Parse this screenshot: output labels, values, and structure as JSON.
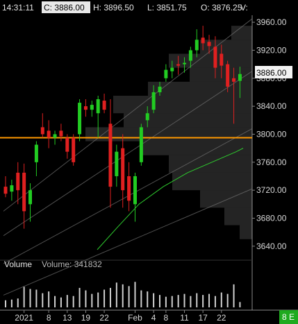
{
  "header": {
    "time": "14:31:11",
    "close_label": "C: 3886.00",
    "high_label": "H: 3896.50",
    "low_label": "L: 3851.75",
    "open_label": "O: 3876.25",
    "volume_label": "V:"
  },
  "price_tag": "3886.00",
  "volume_panel": {
    "title": "Volume",
    "value_label": "Volume: 341832"
  },
  "badge": "8 E",
  "colors": {
    "up": "#22cc22",
    "down": "#e02020",
    "orange_line": "#ff9900",
    "ma_green": "#2ecc2e",
    "volume": "#d0d0d0",
    "badge_bg": "#1faa1f"
  },
  "chart_data": {
    "type": "candlestick",
    "y_range": [
      3620,
      3970
    ],
    "y_ticks": [
      3960,
      3920,
      3880,
      3840,
      3800,
      3760,
      3720,
      3680,
      3640
    ],
    "y_tick_labels": [
      "3960.00",
      "3920.00",
      "3880.00",
      "3840.00",
      "3800.00",
      "3760.00",
      "3720.00",
      "3680.00",
      "3640.00"
    ],
    "x_labels": [
      {
        "index": 3,
        "label": "2021"
      },
      {
        "index": 7,
        "label": "8"
      },
      {
        "index": 10,
        "label": "13"
      },
      {
        "index": 13,
        "label": "19"
      },
      {
        "index": 16,
        "label": "22"
      },
      {
        "index": 21,
        "label": "Feb"
      },
      {
        "index": 24,
        "label": "4"
      },
      {
        "index": 26,
        "label": "8"
      },
      {
        "index": 29,
        "label": "11"
      },
      {
        "index": 32,
        "label": "17"
      },
      {
        "index": 35,
        "label": "22"
      }
    ],
    "horizontal_line": 3795,
    "candles": [
      {
        "o": 3725,
        "h": 3740,
        "l": 3710,
        "c": 3715
      },
      {
        "o": 3718,
        "h": 3735,
        "l": 3705,
        "c": 3727
      },
      {
        "o": 3745,
        "h": 3760,
        "l": 3700,
        "c": 3720
      },
      {
        "o": 3745,
        "h": 3758,
        "l": 3665,
        "c": 3690
      },
      {
        "o": 3700,
        "h": 3730,
        "l": 3675,
        "c": 3720
      },
      {
        "o": 3760,
        "h": 3790,
        "l": 3740,
        "c": 3785
      },
      {
        "o": 3810,
        "h": 3830,
        "l": 3795,
        "c": 3800
      },
      {
        "o": 3805,
        "h": 3820,
        "l": 3780,
        "c": 3795
      },
      {
        "o": 3795,
        "h": 3805,
        "l": 3785,
        "c": 3800
      },
      {
        "o": 3805,
        "h": 3815,
        "l": 3790,
        "c": 3797
      },
      {
        "o": 3795,
        "h": 3800,
        "l": 3765,
        "c": 3775
      },
      {
        "o": 3795,
        "h": 3800,
        "l": 3755,
        "c": 3760
      },
      {
        "o": 3800,
        "h": 3850,
        "l": 3790,
        "c": 3845
      },
      {
        "o": 3840,
        "h": 3850,
        "l": 3825,
        "c": 3835
      },
      {
        "o": 3835,
        "h": 3848,
        "l": 3825,
        "c": 3842
      },
      {
        "o": 3830,
        "h": 3855,
        "l": 3795,
        "c": 3850
      },
      {
        "o": 3848,
        "h": 3858,
        "l": 3830,
        "c": 3835
      },
      {
        "o": 3815,
        "h": 3850,
        "l": 3695,
        "c": 3725
      },
      {
        "o": 3740,
        "h": 3785,
        "l": 3725,
        "c": 3775
      },
      {
        "o": 3780,
        "h": 3800,
        "l": 3695,
        "c": 3720
      },
      {
        "o": 3740,
        "h": 3760,
        "l": 3690,
        "c": 3705
      },
      {
        "o": 3700,
        "h": 3745,
        "l": 3675,
        "c": 3740
      },
      {
        "o": 3760,
        "h": 3815,
        "l": 3755,
        "c": 3810
      },
      {
        "o": 3820,
        "h": 3840,
        "l": 3810,
        "c": 3830
      },
      {
        "o": 3835,
        "h": 3870,
        "l": 3830,
        "c": 3860
      },
      {
        "o": 3860,
        "h": 3875,
        "l": 3855,
        "c": 3868
      },
      {
        "o": 3880,
        "h": 3900,
        "l": 3875,
        "c": 3892
      },
      {
        "o": 3890,
        "h": 3905,
        "l": 3880,
        "c": 3895
      },
      {
        "o": 3900,
        "h": 3912,
        "l": 3885,
        "c": 3898
      },
      {
        "o": 3900,
        "h": 3910,
        "l": 3888,
        "c": 3902
      },
      {
        "o": 3905,
        "h": 3925,
        "l": 3895,
        "c": 3920
      },
      {
        "o": 3920,
        "h": 3950,
        "l": 3910,
        "c": 3935
      },
      {
        "o": 3938,
        "h": 3955,
        "l": 3920,
        "c": 3930
      },
      {
        "o": 3932,
        "h": 3942,
        "l": 3915,
        "c": 3926
      },
      {
        "o": 3925,
        "h": 3940,
        "l": 3880,
        "c": 3895
      },
      {
        "o": 3915,
        "h": 3928,
        "l": 3880,
        "c": 3898
      },
      {
        "o": 3900,
        "h": 3905,
        "l": 3860,
        "c": 3868
      },
      {
        "o": 3880,
        "h": 3895,
        "l": 3815,
        "c": 3875
      },
      {
        "o": 3876.25,
        "h": 3896.5,
        "l": 3851.75,
        "c": 3886
      }
    ],
    "volume": {
      "y_range": [
        0,
        100
      ],
      "values": [
        20,
        22,
        25,
        58,
        52,
        50,
        40,
        45,
        32,
        28,
        35,
        32,
        55,
        48,
        38,
        42,
        50,
        55,
        70,
        65,
        60,
        72,
        48,
        45,
        40,
        35,
        30,
        32,
        35,
        38,
        32,
        40,
        35,
        38,
        32,
        42,
        38,
        65,
        15
      ]
    }
  }
}
